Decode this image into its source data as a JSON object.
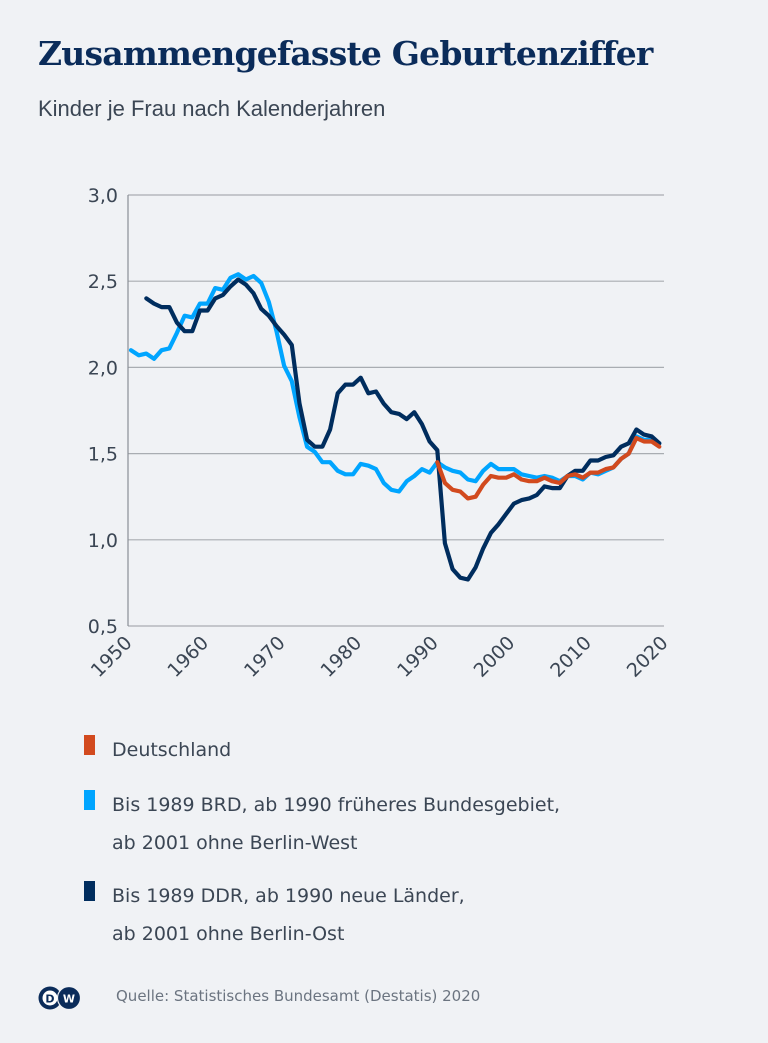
{
  "header": {
    "title": "Zusammengefasste Geburtenziffer",
    "subtitle": "Kinder je Frau nach Kalenderjahren"
  },
  "footer": {
    "logo_text_d": "D",
    "logo_text_w": "W",
    "source": "Quelle: Statistisches Bundesamt (Destatis) 2020"
  },
  "colors": {
    "deutschland": "#d24a1e",
    "west": "#00a5ff",
    "ost": "#002d5e",
    "grid": "#a9adb2",
    "axis": "#8a8f96",
    "background": "#f0f2f5",
    "title": "#0b2c5a"
  },
  "legend": [
    {
      "key": "deutschland",
      "lines": [
        "Deutschland"
      ]
    },
    {
      "key": "west",
      "lines": [
        "Bis 1989 BRD, ab 1990 früheres Bundesgebiet,",
        "ab 2001 ohne Berlin-West"
      ]
    },
    {
      "key": "ost",
      "lines": [
        "Bis 1989 DDR, ab 1990 neue Länder,",
        "ab 2001 ohne Berlin-Ost"
      ]
    }
  ],
  "chart_data": {
    "type": "line",
    "title": "Zusammengefasste Geburtenziffer",
    "subtitle": "Kinder je Frau nach Kalenderjahren",
    "xlabel": "",
    "ylabel": "",
    "xlim": [
      1950,
      2020
    ],
    "ylim": [
      0.5,
      3.0
    ],
    "grid": true,
    "legend_position": "bottom",
    "x_ticks": [
      "1950",
      "1960",
      "1970",
      "1980",
      "1990",
      "2000",
      "2010",
      "2020"
    ],
    "y_ticks": [
      "0,5",
      "1,0",
      "1,5",
      "2,0",
      "2,5",
      "3,0"
    ],
    "series": [
      {
        "key": "west",
        "name": "Bis 1989 BRD, ab 1990 früheres Bundesgebiet, ab 2001 ohne Berlin-West",
        "start_year": 1950,
        "values": [
          2.1,
          2.07,
          2.08,
          2.05,
          2.1,
          2.11,
          2.2,
          2.3,
          2.29,
          2.37,
          2.37,
          2.46,
          2.45,
          2.52,
          2.54,
          2.51,
          2.53,
          2.49,
          2.38,
          2.21,
          2.01,
          1.92,
          1.71,
          1.54,
          1.51,
          1.45,
          1.45,
          1.4,
          1.38,
          1.38,
          1.44,
          1.43,
          1.41,
          1.33,
          1.29,
          1.28,
          1.34,
          1.37,
          1.41,
          1.39,
          1.45,
          1.42,
          1.4,
          1.39,
          1.35,
          1.34,
          1.4,
          1.44,
          1.41,
          1.41,
          1.41,
          1.38,
          1.37,
          1.36,
          1.37,
          1.36,
          1.34,
          1.37,
          1.37,
          1.35,
          1.39,
          1.38,
          1.4,
          1.42,
          1.47,
          1.5,
          1.6,
          1.58,
          1.58,
          1.56
        ]
      },
      {
        "key": "ost",
        "name": "Bis 1989 DDR, ab 1990 neue Länder, ab 2001 ohne Berlin-Ost",
        "start_year": 1952,
        "values": [
          2.4,
          2.37,
          2.35,
          2.35,
          2.26,
          2.21,
          2.21,
          2.33,
          2.33,
          2.4,
          2.42,
          2.47,
          2.51,
          2.48,
          2.43,
          2.34,
          2.3,
          2.24,
          2.19,
          2.13,
          1.79,
          1.58,
          1.54,
          1.54,
          1.64,
          1.85,
          1.9,
          1.9,
          1.94,
          1.85,
          1.86,
          1.79,
          1.74,
          1.73,
          1.7,
          1.74,
          1.67,
          1.57,
          1.52,
          0.98,
          0.83,
          0.78,
          0.77,
          0.84,
          0.95,
          1.04,
          1.09,
          1.15,
          1.21,
          1.23,
          1.24,
          1.26,
          1.31,
          1.3,
          1.3,
          1.37,
          1.4,
          1.4,
          1.46,
          1.46,
          1.48,
          1.49,
          1.54,
          1.56,
          1.64,
          1.61,
          1.6,
          1.56
        ]
      },
      {
        "key": "deutschland",
        "name": "Deutschland",
        "start_year": 1990,
        "values": [
          1.45,
          1.33,
          1.29,
          1.28,
          1.24,
          1.25,
          1.32,
          1.37,
          1.36,
          1.36,
          1.38,
          1.35,
          1.34,
          1.34,
          1.36,
          1.34,
          1.33,
          1.37,
          1.38,
          1.36,
          1.39,
          1.39,
          1.41,
          1.42,
          1.47,
          1.5,
          1.59,
          1.57,
          1.57,
          1.54
        ]
      }
    ]
  }
}
